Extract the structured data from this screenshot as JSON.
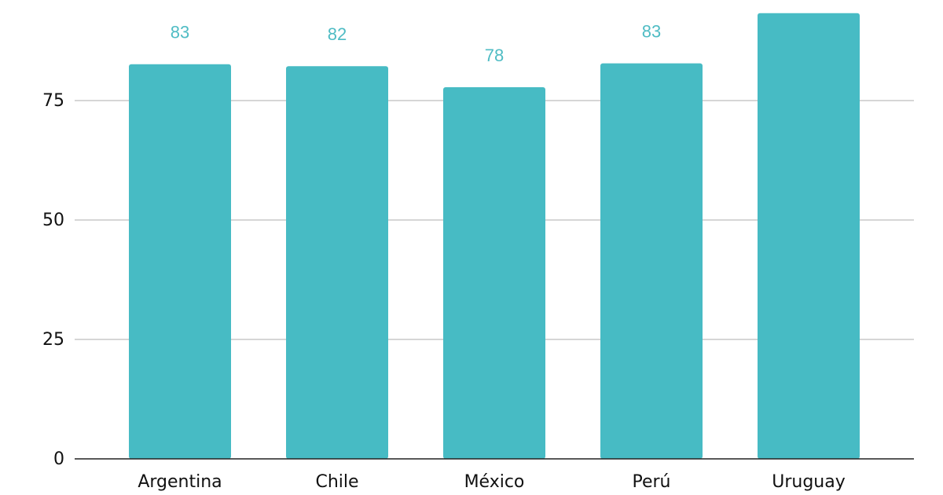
{
  "chart_data": {
    "type": "bar",
    "categories": [
      "Argentina",
      "Chile",
      "México",
      "Perú",
      "Uruguay"
    ],
    "values": [
      82.6,
      82.2,
      77.8,
      82.8,
      93.3
    ],
    "value_labels": [
      "83",
      "82",
      "78",
      "83",
      null
    ],
    "color": "#47bbc4",
    "ylim": [
      0,
      95
    ],
    "yticks": [
      0,
      25,
      50,
      75
    ],
    "grid": true
  }
}
